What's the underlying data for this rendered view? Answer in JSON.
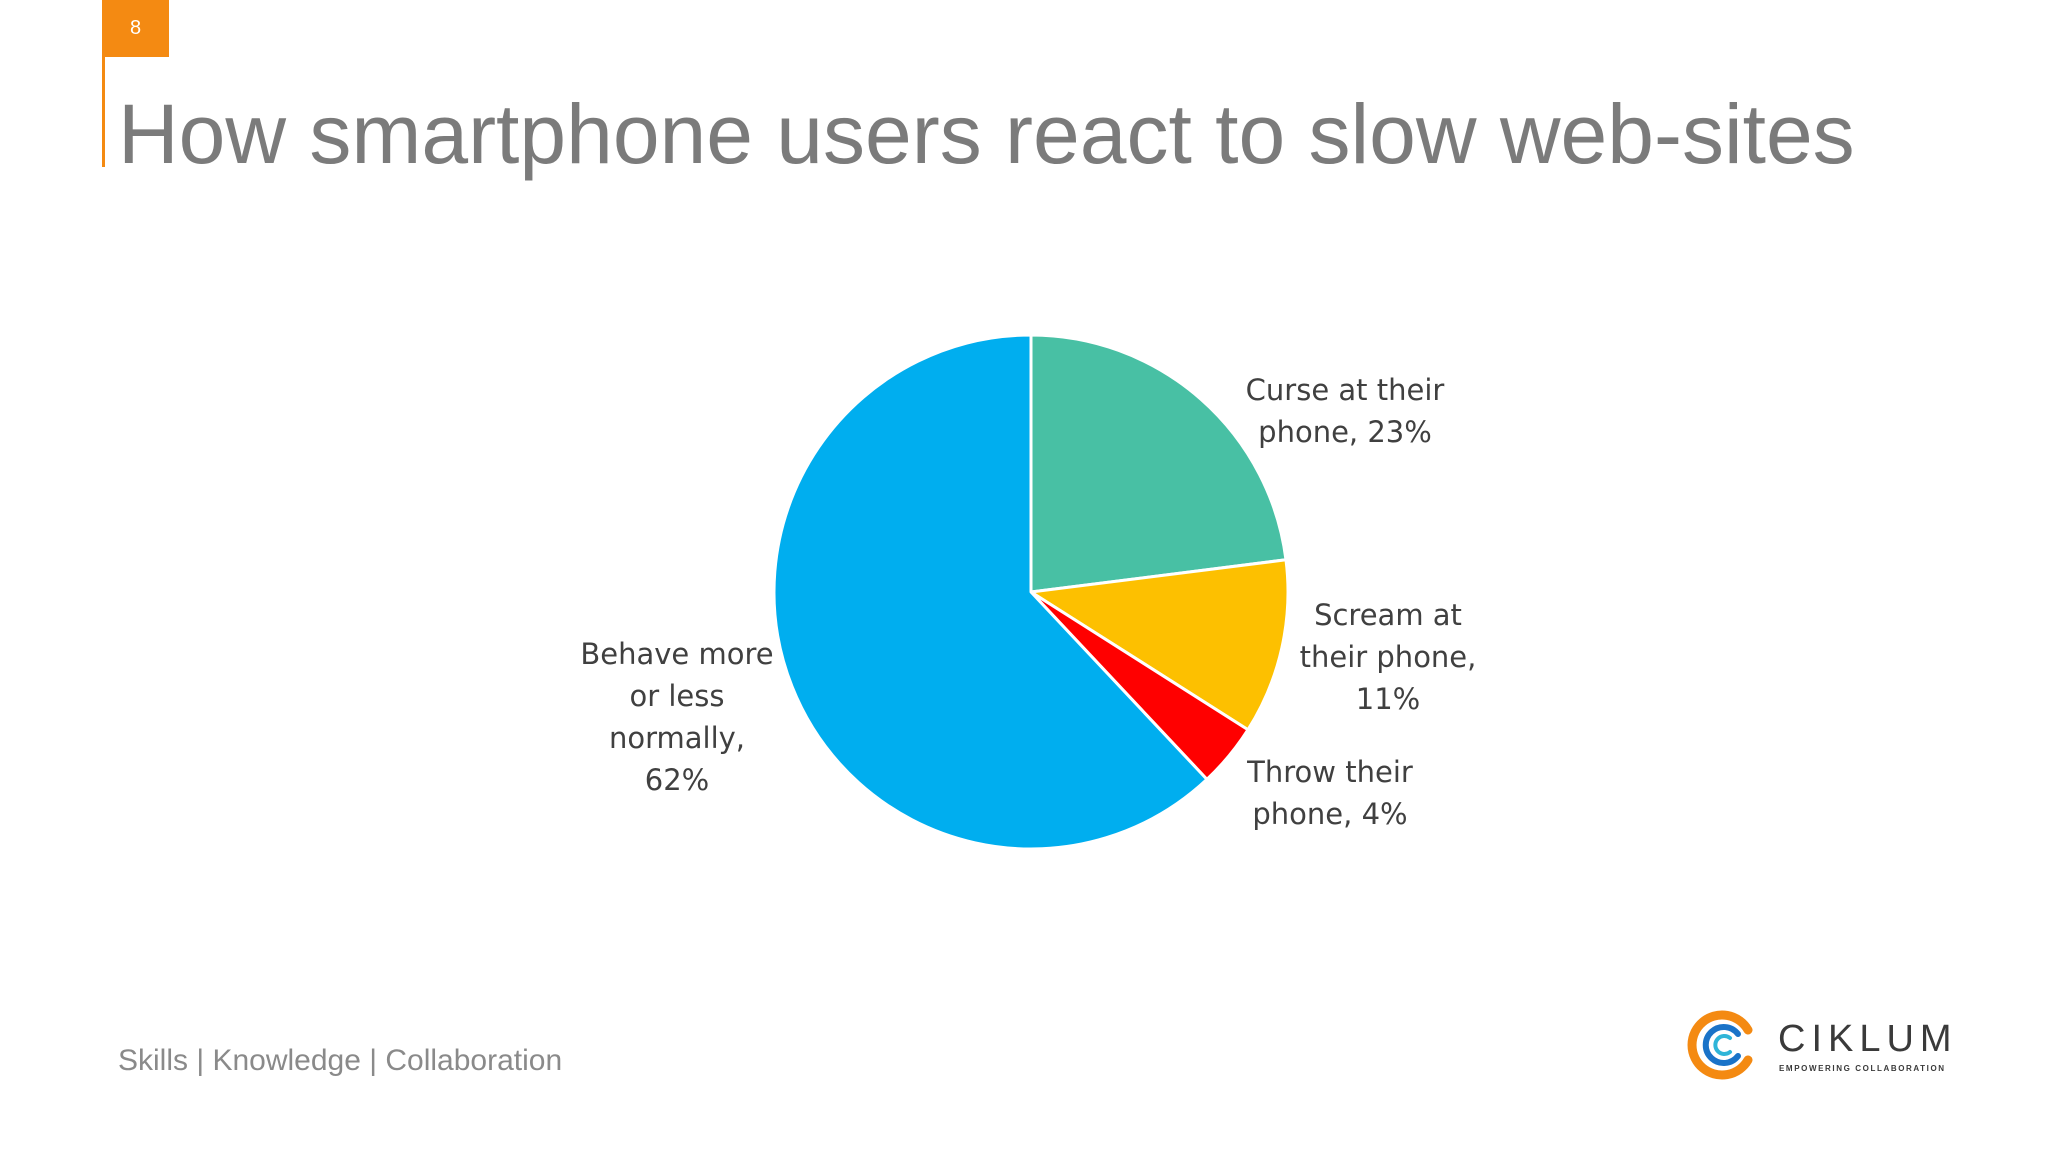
{
  "page": {
    "number": "8"
  },
  "title": "How smartphone users react to slow web-sites",
  "footer": {
    "text": "Skills | Knowledge | Collaboration"
  },
  "logo": {
    "name": "CIKLUM",
    "tagline": "EMPOWERING COLLABORATION"
  },
  "chart_data": {
    "type": "pie",
    "title": "",
    "start_angle_deg": 0,
    "direction": "clockwise",
    "slices": [
      {
        "label_lines": [
          "Curse at their",
          "phone, 23%"
        ],
        "value": 23,
        "color": "#48c0a4"
      },
      {
        "label_lines": [
          "Scream at",
          "their phone,",
          "11%"
        ],
        "value": 11,
        "color": "#fdc000"
      },
      {
        "label_lines": [
          "Throw their",
          "phone, 4%"
        ],
        "value": 4,
        "color": "#ff0000"
      },
      {
        "label_lines": [
          "Behave more",
          "or less",
          "normally,",
          "62%"
        ],
        "value": 62,
        "color": "#00aeef"
      }
    ]
  }
}
